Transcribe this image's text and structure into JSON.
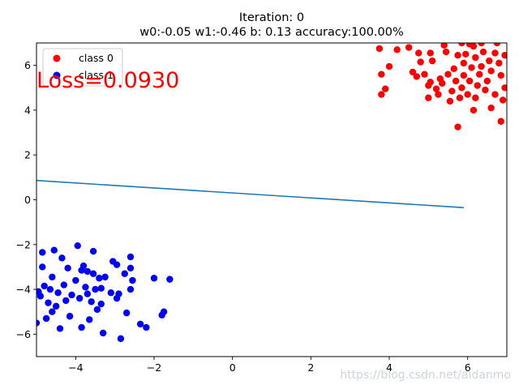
{
  "chart_data": {
    "type": "scatter",
    "title": "Iteration: 0",
    "subtitle": "w0:-0.05 w1:-0.46 b: 0.13 accuracy:100.00%",
    "xlabel": "",
    "ylabel": "",
    "xlim": [
      -5,
      7
    ],
    "ylim": [
      -7,
      7
    ],
    "x_ticks": [
      -4,
      -2,
      0,
      2,
      4,
      6
    ],
    "y_ticks": [
      -6,
      -4,
      -2,
      0,
      2,
      4,
      6
    ],
    "grid": false,
    "legend_position": "top-left",
    "annotation": {
      "text": "Loss=0.0930",
      "color": "#ff0000"
    },
    "watermark": "https://blog.csdn.net/aidanmo",
    "line": {
      "color": "#1f77b4",
      "x": [
        -5.0,
        5.9
      ],
      "y": [
        0.86,
        -0.35
      ]
    },
    "series": [
      {
        "name": "class 0",
        "color": "#ff0000",
        "points": [
          [
            3.75,
            6.75
          ],
          [
            3.8,
            5.6
          ],
          [
            3.9,
            4.95
          ],
          [
            3.8,
            4.7
          ],
          [
            4.0,
            5.95
          ],
          [
            4.2,
            6.7
          ],
          [
            4.5,
            6.8
          ],
          [
            4.6,
            5.7
          ],
          [
            4.7,
            5.5
          ],
          [
            4.75,
            6.55
          ],
          [
            4.8,
            6.15
          ],
          [
            4.9,
            5.6
          ],
          [
            5.0,
            5.1
          ],
          [
            5.0,
            4.55
          ],
          [
            5.05,
            6.55
          ],
          [
            5.1,
            6.2
          ],
          [
            5.2,
            4.95
          ],
          [
            5.25,
            4.7
          ],
          [
            5.3,
            5.4
          ],
          [
            5.35,
            5.2
          ],
          [
            5.4,
            6.9
          ],
          [
            5.45,
            6.6
          ],
          [
            5.5,
            5.6
          ],
          [
            5.55,
            4.4
          ],
          [
            5.6,
            4.85
          ],
          [
            5.65,
            5.85
          ],
          [
            5.7,
            5.3
          ],
          [
            5.75,
            6.45
          ],
          [
            5.75,
            3.25
          ],
          [
            5.8,
            4.55
          ],
          [
            5.85,
            5.0
          ],
          [
            5.9,
            5.55
          ],
          [
            5.9,
            6.1
          ],
          [
            5.95,
            6.5
          ],
          [
            6.0,
            4.7
          ],
          [
            6.05,
            5.3
          ],
          [
            6.1,
            5.9
          ],
          [
            6.15,
            6.85
          ],
          [
            6.2,
            4.55
          ],
          [
            6.2,
            6.35
          ],
          [
            6.25,
            5.1
          ],
          [
            6.3,
            5.6
          ],
          [
            6.35,
            7.0
          ],
          [
            6.4,
            6.6
          ],
          [
            6.45,
            4.9
          ],
          [
            6.5,
            5.3
          ],
          [
            6.55,
            6.2
          ],
          [
            6.6,
            5.75
          ],
          [
            6.7,
            4.7
          ],
          [
            6.75,
            7.0
          ],
          [
            6.8,
            6.1
          ],
          [
            6.85,
            5.55
          ],
          [
            6.9,
            4.45
          ],
          [
            6.95,
            6.45
          ],
          [
            6.95,
            5.0
          ],
          [
            6.85,
            3.5
          ],
          [
            6.6,
            4.1
          ],
          [
            6.15,
            4.0
          ],
          [
            6.05,
            6.95
          ],
          [
            5.05,
            5.25
          ],
          [
            6.35,
            5.95
          ],
          [
            6.7,
            6.55
          ],
          [
            5.85,
            7.0
          ]
        ]
      },
      {
        "name": "class 1",
        "color": "#0000ff",
        "points": [
          [
            -5.0,
            -5.5
          ],
          [
            -4.9,
            -4.3
          ],
          [
            -4.85,
            -2.35
          ],
          [
            -4.85,
            -3.0
          ],
          [
            -4.8,
            -3.85
          ],
          [
            -4.75,
            -5.3
          ],
          [
            -4.7,
            -4.6
          ],
          [
            -4.65,
            -4.0
          ],
          [
            -4.6,
            -5.0
          ],
          [
            -4.6,
            -3.45
          ],
          [
            -4.55,
            -2.25
          ],
          [
            -4.5,
            -4.75
          ],
          [
            -4.45,
            -4.15
          ],
          [
            -4.4,
            -5.75
          ],
          [
            -4.35,
            -2.6
          ],
          [
            -4.3,
            -3.8
          ],
          [
            -4.25,
            -4.5
          ],
          [
            -4.15,
            -5.2
          ],
          [
            -4.1,
            -4.25
          ],
          [
            -4.0,
            -3.6
          ],
          [
            -3.95,
            -2.05
          ],
          [
            -3.9,
            -4.4
          ],
          [
            -3.85,
            -5.7
          ],
          [
            -3.85,
            -3.15
          ],
          [
            -3.8,
            -2.95
          ],
          [
            -3.75,
            -3.9
          ],
          [
            -3.7,
            -4.2
          ],
          [
            -3.65,
            -5.35
          ],
          [
            -3.6,
            -4.55
          ],
          [
            -3.55,
            -2.3
          ],
          [
            -3.55,
            -3.3
          ],
          [
            -3.5,
            -4.0
          ],
          [
            -3.45,
            -4.9
          ],
          [
            -3.4,
            -3.5
          ],
          [
            -3.35,
            -3.95
          ],
          [
            -3.3,
            -5.95
          ],
          [
            -3.25,
            -3.45
          ],
          [
            -3.1,
            -4.15
          ],
          [
            -3.05,
            -2.75
          ],
          [
            -2.95,
            -4.4
          ],
          [
            -2.9,
            -4.2
          ],
          [
            -2.85,
            -6.2
          ],
          [
            -2.75,
            -3.3
          ],
          [
            -2.7,
            -5.05
          ],
          [
            -2.6,
            -2.55
          ],
          [
            -2.6,
            -4.0
          ],
          [
            -2.55,
            -3.6
          ],
          [
            -2.35,
            -5.55
          ],
          [
            -2.2,
            -5.7
          ],
          [
            -2.0,
            -3.5
          ],
          [
            -1.8,
            -5.15
          ],
          [
            -1.75,
            -5.0
          ],
          [
            -1.6,
            -3.55
          ],
          [
            -4.95,
            -4.1
          ],
          [
            -3.7,
            -3.2
          ],
          [
            -2.6,
            -3.05
          ],
          [
            -2.95,
            -2.9
          ],
          [
            -4.2,
            -3.05
          ],
          [
            -3.35,
            -4.65
          ]
        ]
      }
    ]
  }
}
